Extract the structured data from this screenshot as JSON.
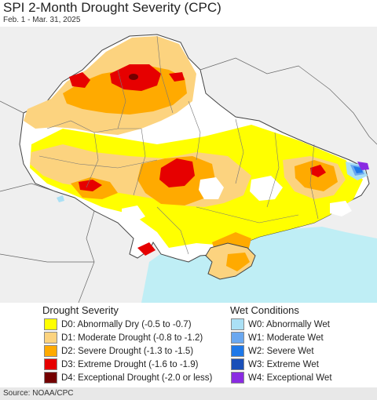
{
  "title": "SPI 2-Month Drought Severity (CPC)",
  "subtitle": "Feb. 1 - Mar. 31, 2025",
  "map": {
    "region": "Ukraine",
    "colors": {
      "land_outside": "#efefef",
      "sea": "#bfeef5",
      "d0": "#ffff00",
      "d1": "#fcd37f",
      "d2": "#ffaa00",
      "d3": "#e60000",
      "d4": "#730000",
      "w0": "#aae0f5",
      "w1": "#6ba8f0",
      "w2": "#1f78e8",
      "w3": "#1a4fb8",
      "w4": "#8a2be2",
      "boundary": "#555555"
    }
  },
  "legend": {
    "drought": {
      "heading": "Drought Severity",
      "items": [
        {
          "label": "D0: Abnormally Dry (-0.5 to -0.7)",
          "color": "#ffff00"
        },
        {
          "label": "D1: Moderate Drought (-0.8 to -1.2)",
          "color": "#fcd37f"
        },
        {
          "label": "D2: Severe Drought (-1.3 to -1.5)",
          "color": "#ffaa00"
        },
        {
          "label": "D3: Extreme Drought (-1.6 to -1.9)",
          "color": "#e60000"
        },
        {
          "label": "D4: Exceptional Drought (-2.0 or less)",
          "color": "#730000"
        }
      ]
    },
    "wet": {
      "heading": "Wet Conditions",
      "items": [
        {
          "label": "W0: Abnormally Wet",
          "color": "#aae0f5"
        },
        {
          "label": "W1: Moderate Wet",
          "color": "#6ba8f0"
        },
        {
          "label": "W2: Severe Wet",
          "color": "#1f78e8"
        },
        {
          "label": "W3: Extreme Wet",
          "color": "#1a4fb8"
        },
        {
          "label": "W4: Exceptional Wet",
          "color": "#8a2be2"
        }
      ]
    }
  },
  "source": "Source: NOAA/CPC"
}
